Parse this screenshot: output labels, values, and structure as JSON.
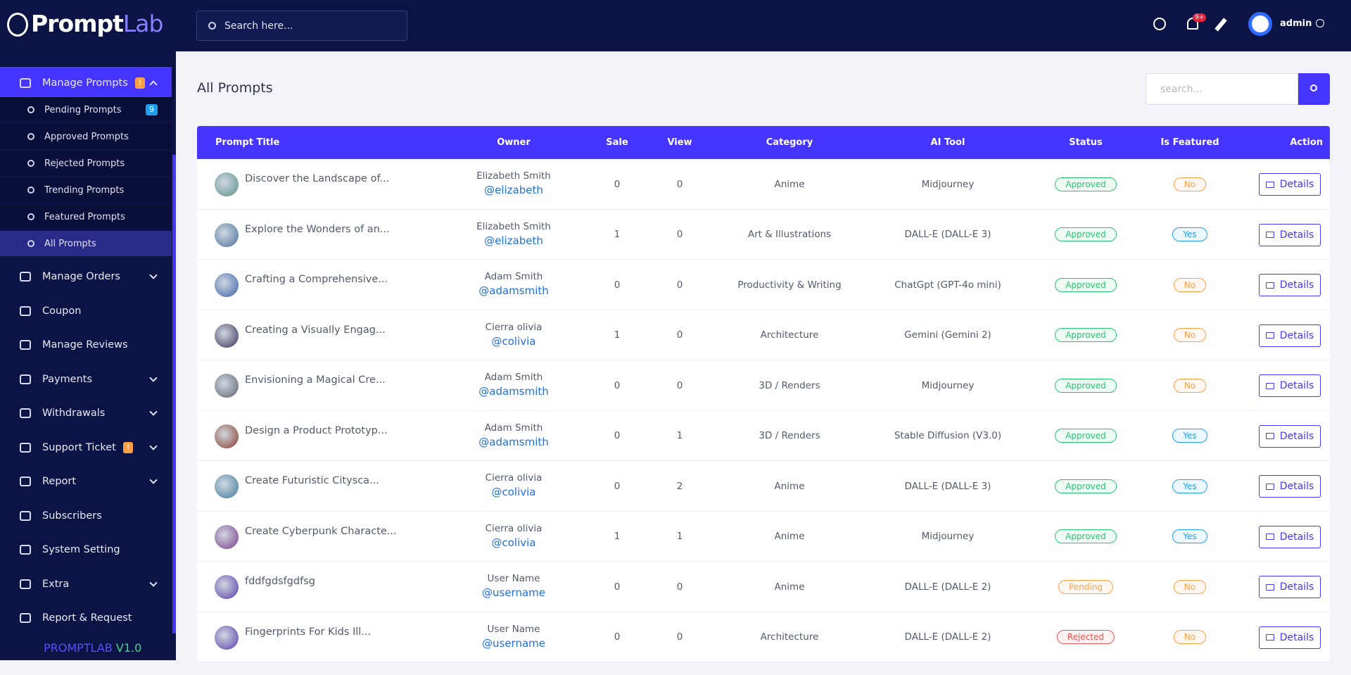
{
  "brand": {
    "part1": "Prompt",
    "part2": "Lab"
  },
  "top_search": "Search here...",
  "user": "admin",
  "notifications": "9+",
  "menu": [
    {
      "label": "Manage Prompts",
      "badge": "!",
      "expandable": true,
      "open": true,
      "children": [
        {
          "label": "Pending Prompts",
          "badge": "9"
        },
        {
          "label": "Approved Prompts"
        },
        {
          "label": "Rejected Prompts"
        },
        {
          "label": "Trending Prompts"
        },
        {
          "label": "Featured Prompts"
        },
        {
          "label": "All Prompts",
          "active": true
        }
      ]
    },
    {
      "label": "Manage Orders",
      "expandable": true
    },
    {
      "label": "Coupon"
    },
    {
      "label": "Manage Reviews"
    },
    {
      "label": "Payments",
      "expandable": true
    },
    {
      "label": "Withdrawals",
      "expandable": true
    },
    {
      "label": "Support Ticket",
      "badge": "!",
      "expandable": true
    },
    {
      "label": "Report",
      "expandable": true
    },
    {
      "label": "Subscribers"
    },
    {
      "label": "System Setting"
    },
    {
      "label": "Extra",
      "expandable": true
    },
    {
      "label": "Report & Request"
    }
  ],
  "version": {
    "name": "PROMPTLAB",
    "number": "V1.0"
  },
  "page_title": "All Prompts",
  "search_placeholder": "search...",
  "table": {
    "headers": [
      "Prompt Title",
      "Owner",
      "Sale",
      "View",
      "Category",
      "AI Tool",
      "Status",
      "Is Featured",
      "Action"
    ],
    "rows": [
      {
        "title": "Discover the Landscape of...",
        "owner": "Elizabeth Smith",
        "handle": "@elizabeth",
        "sale": 0,
        "view": 0,
        "category": "Anime",
        "ai_tool": "Midjourney",
        "status": "Approved",
        "featured": "No",
        "action": "Details"
      },
      {
        "title": "Explore the Wonders of an...",
        "owner": "Elizabeth Smith",
        "handle": "@elizabeth",
        "sale": 1,
        "view": 0,
        "category": "Art & Illustrations",
        "ai_tool": "DALL-E (DALL-E 3)",
        "status": "Approved",
        "featured": "Yes",
        "action": "Details"
      },
      {
        "title": "Crafting a Comprehensive...",
        "owner": "Adam Smith",
        "handle": "@adamsmith",
        "sale": 0,
        "view": 0,
        "category": "Productivity & Writing",
        "ai_tool": "ChatGpt (GPT-4o mini)",
        "status": "Approved",
        "featured": "No",
        "action": "Details"
      },
      {
        "title": "Creating a Visually Engag...",
        "owner": "Cierra olivia",
        "handle": "@colivia",
        "sale": 1,
        "view": 0,
        "category": "Architecture",
        "ai_tool": "Gemini (Gemini 2)",
        "status": "Approved",
        "featured": "No",
        "action": "Details"
      },
      {
        "title": "Envisioning a Magical Cre...",
        "owner": "Adam Smith",
        "handle": "@adamsmith",
        "sale": 0,
        "view": 0,
        "category": "3D / Renders",
        "ai_tool": "Midjourney",
        "status": "Approved",
        "featured": "No",
        "action": "Details"
      },
      {
        "title": "Design a Product Prototyp...",
        "owner": "Adam Smith",
        "handle": "@adamsmith",
        "sale": 0,
        "view": 1,
        "category": "3D / Renders",
        "ai_tool": "Stable Diffusion (V3.0)",
        "status": "Approved",
        "featured": "Yes",
        "action": "Details"
      },
      {
        "title": "Create Futuristic Citysca...",
        "owner": "Cierra olivia",
        "handle": "@colivia",
        "sale": 0,
        "view": 2,
        "category": "Anime",
        "ai_tool": "DALL-E (DALL-E 3)",
        "status": "Approved",
        "featured": "Yes",
        "action": "Details"
      },
      {
        "title": "Create Cyberpunk Characte...",
        "owner": "Cierra olivia",
        "handle": "@colivia",
        "sale": 1,
        "view": 1,
        "category": "Anime",
        "ai_tool": "Midjourney",
        "status": "Approved",
        "featured": "Yes",
        "action": "Details"
      },
      {
        "title": "fddfgdsfgdfsg",
        "owner": "User Name",
        "handle": "@username",
        "sale": 0,
        "view": 0,
        "category": "Anime",
        "ai_tool": "DALL-E (DALL-E 2)",
        "status": "Pending",
        "featured": "No",
        "action": "Details"
      },
      {
        "title": "Fingerprints For Kids Ill...",
        "owner": "User Name",
        "handle": "@username",
        "sale": 0,
        "view": 0,
        "category": "Architecture",
        "ai_tool": "DALL-E (DALL-E 2)",
        "status": "Rejected",
        "featured": "No",
        "action": "Details"
      }
    ]
  }
}
